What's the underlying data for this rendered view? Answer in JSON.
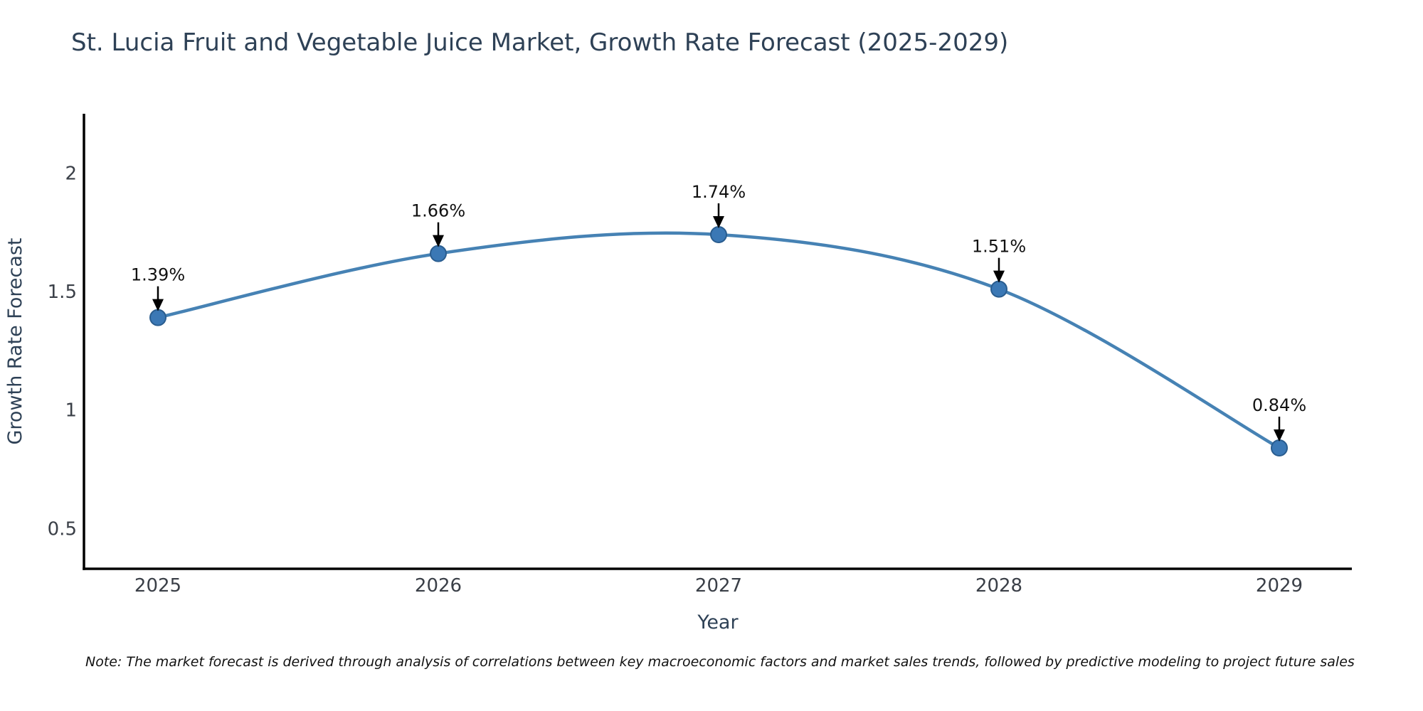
{
  "title": "St. Lucia Fruit and Vegetable Juice Market, Growth Rate Forecast (2025-2029)",
  "note": "Note: The market forecast is derived through analysis of correlations between key macroeconomic factors and market sales trends, followed by predictive modeling to project future sales",
  "chart_data": {
    "type": "line",
    "title": "St. Lucia Fruit and Vegetable Juice Market, Growth Rate Forecast (2025-2029)",
    "categories": [
      "2025",
      "2026",
      "2027",
      "2028",
      "2029"
    ],
    "values": [
      1.39,
      1.66,
      1.74,
      1.51,
      0.84
    ],
    "point_labels": [
      "1.39%",
      "1.66%",
      "1.74%",
      "1.51%",
      "0.84%"
    ],
    "xlabel": "Year",
    "ylabel": "Growth Rate Forecast",
    "ytick_labels": [
      "0.5",
      "1",
      "1.5",
      "2"
    ],
    "ytick_values": [
      0.5,
      1,
      1.5,
      2
    ],
    "ylim": [
      0.33,
      2.25
    ],
    "grid": false,
    "legend": "none",
    "line_shape": "spline",
    "marker": "circle",
    "annotations": "black arrows pointing down to each data point with percent labels above",
    "colors": {
      "line": "#4682b4",
      "marker_fill": "#3b78b5",
      "marker_edge": "#2a5d8f",
      "annotation_text": "#111111",
      "arrow": "#000000",
      "axis_spine": "#000000",
      "tick_label": "#3a3f47",
      "axis_label": "#2e4156",
      "title": "#2e4156",
      "background": "#ffffff"
    }
  }
}
